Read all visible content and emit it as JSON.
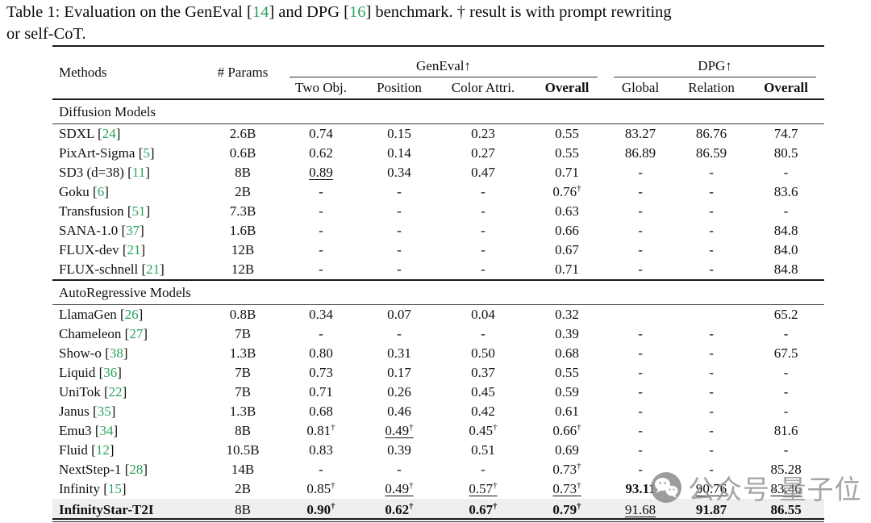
{
  "caption": {
    "part1": "Table 1: Evaluation on the GenEval [",
    "cite1": "14",
    "part2": "] and DPG [",
    "cite2": "16",
    "part3": "] benchmark. † result is with prompt rewriting",
    "line2": "or self-CoT."
  },
  "table": {
    "dagger": "†",
    "header": {
      "methods": "Methods",
      "params": "# Params",
      "group_geneval": "GenEval↑",
      "group_dpg": "DPG↑",
      "cols": [
        "Two Obj.",
        "Position",
        "Color Attri.",
        "Overall",
        "Global",
        "Relation",
        "Overall"
      ]
    },
    "sections": [
      {
        "label": "Diffusion Models",
        "rows": [
          {
            "method": "SDXL",
            "cite": "24",
            "params": "2.6B",
            "cells": [
              {
                "v": "0.74"
              },
              {
                "v": "0.15"
              },
              {
                "v": "0.23"
              },
              {
                "v": "0.55"
              },
              {
                "v": "83.27"
              },
              {
                "v": "86.76"
              },
              {
                "v": "74.7"
              }
            ]
          },
          {
            "method": "PixArt-Sigma",
            "cite": "5",
            "params": "0.6B",
            "cells": [
              {
                "v": "0.62"
              },
              {
                "v": "0.14"
              },
              {
                "v": "0.27"
              },
              {
                "v": "0.55"
              },
              {
                "v": "86.89"
              },
              {
                "v": "86.59"
              },
              {
                "v": "80.5"
              }
            ]
          },
          {
            "method": "SD3 (d=38)",
            "cite": "11",
            "params": "8B",
            "cells": [
              {
                "v": "0.89",
                "u": true
              },
              {
                "v": "0.34"
              },
              {
                "v": "0.47"
              },
              {
                "v": "0.71"
              },
              {
                "v": "-"
              },
              {
                "v": "-"
              },
              {
                "v": "-"
              }
            ]
          },
          {
            "method": "Goku",
            "cite": "6",
            "params": "2B",
            "cells": [
              {
                "v": "-"
              },
              {
                "v": "-"
              },
              {
                "v": "-"
              },
              {
                "v": "0.76",
                "d": true
              },
              {
                "v": "-"
              },
              {
                "v": "-"
              },
              {
                "v": "83.6"
              }
            ]
          },
          {
            "method": "Transfusion",
            "cite": "51",
            "params": "7.3B",
            "cells": [
              {
                "v": "-"
              },
              {
                "v": "-"
              },
              {
                "v": "-"
              },
              {
                "v": "0.63"
              },
              {
                "v": "-"
              },
              {
                "v": "-"
              },
              {
                "v": "-"
              }
            ]
          },
          {
            "method": "SANA-1.0",
            "cite": "37",
            "params": "1.6B",
            "cells": [
              {
                "v": "-"
              },
              {
                "v": "-"
              },
              {
                "v": "-"
              },
              {
                "v": "0.66"
              },
              {
                "v": "-"
              },
              {
                "v": "-"
              },
              {
                "v": "84.8"
              }
            ]
          },
          {
            "method": "FLUX-dev",
            "cite": "21",
            "params": "12B",
            "cells": [
              {
                "v": "-"
              },
              {
                "v": "-"
              },
              {
                "v": "-"
              },
              {
                "v": "0.67"
              },
              {
                "v": "-"
              },
              {
                "v": "-"
              },
              {
                "v": "84.0"
              }
            ]
          },
          {
            "method": "FLUX-schnell",
            "cite": "21",
            "params": "12B",
            "cells": [
              {
                "v": "-"
              },
              {
                "v": "-"
              },
              {
                "v": "-"
              },
              {
                "v": "0.71"
              },
              {
                "v": "-"
              },
              {
                "v": "-"
              },
              {
                "v": "84.8"
              }
            ]
          }
        ]
      },
      {
        "label": "AutoRegressive Models",
        "rows": [
          {
            "method": "LlamaGen",
            "cite": "26",
            "params": "0.8B",
            "cells": [
              {
                "v": "0.34"
              },
              {
                "v": "0.07"
              },
              {
                "v": "0.04"
              },
              {
                "v": "0.32"
              },
              {
                "v": ""
              },
              {
                "v": ""
              },
              {
                "v": "65.2"
              }
            ]
          },
          {
            "method": "Chameleon",
            "cite": "27",
            "params": "7B",
            "cells": [
              {
                "v": "-"
              },
              {
                "v": "-"
              },
              {
                "v": "-"
              },
              {
                "v": "0.39"
              },
              {
                "v": "-"
              },
              {
                "v": "-"
              },
              {
                "v": "-"
              }
            ]
          },
          {
            "method": "Show-o",
            "cite": "38",
            "params": "1.3B",
            "cells": [
              {
                "v": "0.80"
              },
              {
                "v": "0.31"
              },
              {
                "v": "0.50"
              },
              {
                "v": "0.68"
              },
              {
                "v": "-"
              },
              {
                "v": "-"
              },
              {
                "v": "67.5"
              }
            ]
          },
          {
            "method": "Liquid",
            "cite": "36",
            "params": "7B",
            "cells": [
              {
                "v": "0.73"
              },
              {
                "v": "0.17"
              },
              {
                "v": "0.37"
              },
              {
                "v": "0.55"
              },
              {
                "v": "-"
              },
              {
                "v": "-"
              },
              {
                "v": "-"
              }
            ]
          },
          {
            "method": "UniTok",
            "cite": "22",
            "params": "7B",
            "cells": [
              {
                "v": "0.71"
              },
              {
                "v": "0.26"
              },
              {
                "v": "0.45"
              },
              {
                "v": "0.59"
              },
              {
                "v": "-"
              },
              {
                "v": "-"
              },
              {
                "v": "-"
              }
            ]
          },
          {
            "method": "Janus",
            "cite": "35",
            "params": "1.3B",
            "cells": [
              {
                "v": "0.68"
              },
              {
                "v": "0.46"
              },
              {
                "v": "0.42"
              },
              {
                "v": "0.61"
              },
              {
                "v": "-"
              },
              {
                "v": "-"
              },
              {
                "v": "-"
              }
            ]
          },
          {
            "method": "Emu3",
            "cite": "34",
            "params": "8B",
            "cells": [
              {
                "v": "0.81",
                "d": true
              },
              {
                "v": "0.49",
                "d": true,
                "u": true
              },
              {
                "v": "0.45",
                "d": true
              },
              {
                "v": "0.66",
                "d": true
              },
              {
                "v": "-"
              },
              {
                "v": "-"
              },
              {
                "v": "81.6"
              }
            ]
          },
          {
            "method": "Fluid",
            "cite": "12",
            "params": "10.5B",
            "cells": [
              {
                "v": "0.83"
              },
              {
                "v": "0.39"
              },
              {
                "v": "0.51"
              },
              {
                "v": "0.69"
              },
              {
                "v": "-"
              },
              {
                "v": "-"
              },
              {
                "v": "-"
              }
            ]
          },
          {
            "method": "NextStep-1",
            "cite": "28",
            "params": "14B",
            "cells": [
              {
                "v": "-"
              },
              {
                "v": "-"
              },
              {
                "v": "-"
              },
              {
                "v": "0.73",
                "d": true
              },
              {
                "v": "-"
              },
              {
                "v": "-"
              },
              {
                "v": "85.28"
              }
            ]
          },
          {
            "method": "Infinity",
            "cite": "15",
            "params": "2B",
            "cells": [
              {
                "v": "0.85",
                "d": true
              },
              {
                "v": "0.49",
                "d": true,
                "u": true
              },
              {
                "v": "0.57",
                "d": true,
                "u": true
              },
              {
                "v": "0.73",
                "d": true,
                "u": true
              },
              {
                "v": "93.11",
                "b": true
              },
              {
                "v": "90.76",
                "u": true
              },
              {
                "v": "83.46",
                "u": true
              }
            ]
          },
          {
            "method": "InfinityStar-T2I",
            "cite": null,
            "params": "8B",
            "bold_name": true,
            "highlight": true,
            "cells": [
              {
                "v": "0.90",
                "d": true,
                "b": true
              },
              {
                "v": "0.62",
                "d": true,
                "b": true
              },
              {
                "v": "0.67",
                "d": true,
                "b": true
              },
              {
                "v": "0.79",
                "d": true,
                "b": true
              },
              {
                "v": "91.68",
                "u": true
              },
              {
                "v": "91.87",
                "b": true
              },
              {
                "v": "86.55",
                "b": true
              }
            ]
          }
        ]
      }
    ]
  },
  "watermark": {
    "text": "公众号·量子位"
  },
  "colors": {
    "citation_green": "#2BA35C",
    "highlight_bg": "#EFEFEF",
    "watermark_gray": "rgba(148,148,148,0.85)",
    "rule_dark": "#1a1a1a"
  }
}
